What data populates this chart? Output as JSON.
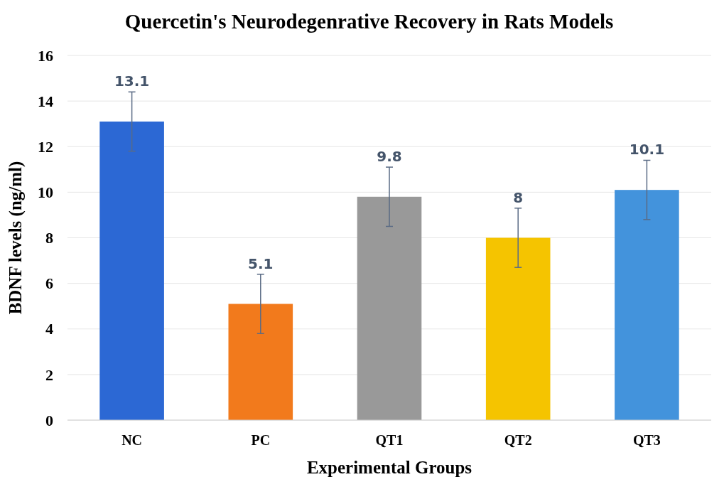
{
  "chart_data": {
    "type": "bar",
    "title": "Quercetin's Neurodegenrative Recovery in Rats Models",
    "xlabel": "Experimental Groups",
    "ylabel": "BDNF levels (ng/ml)",
    "categories": [
      "NC",
      "PC",
      "QT1",
      "QT2",
      "QT3"
    ],
    "values": [
      13.1,
      5.1,
      9.8,
      8,
      10.1
    ],
    "colors": [
      "#2c68d4",
      "#f27a1c",
      "#999999",
      "#f5c400",
      "#4393dc"
    ],
    "errors": [
      1.3,
      1.3,
      1.3,
      1.3,
      1.3
    ],
    "data_labels": true,
    "ylim": [
      0,
      16
    ],
    "yticks": [
      0,
      2,
      4,
      6,
      8,
      10,
      12,
      14,
      16
    ],
    "grid": "y"
  }
}
